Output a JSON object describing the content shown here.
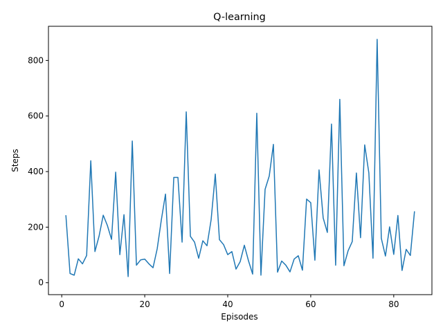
{
  "chart_data": {
    "type": "line",
    "title": "Q-learning",
    "xlabel": "Episodes",
    "ylabel": "Steps",
    "xlim": [
      -3.2,
      89.2
    ],
    "ylim": [
      -43,
      923
    ],
    "x_ticks": [
      0,
      20,
      40,
      60,
      80
    ],
    "y_ticks": [
      0,
      200,
      400,
      600,
      800
    ],
    "grid": false,
    "legend": "none",
    "colors": {
      "line": "#1f77b4",
      "axes": "#000000",
      "background": "#ffffff"
    },
    "series": [
      {
        "x": [
          1,
          2,
          3,
          4,
          5,
          6,
          7,
          8,
          9,
          10,
          11,
          12,
          13,
          14,
          15,
          16,
          17,
          18,
          19,
          20,
          21,
          22,
          23,
          24,
          25,
          26,
          27,
          28,
          29,
          30,
          31,
          32,
          33,
          34,
          35,
          36,
          37,
          38,
          39,
          40,
          41,
          42,
          43,
          44,
          45,
          46,
          47,
          48,
          49,
          50,
          51,
          52,
          53,
          54,
          55,
          56,
          57,
          58,
          59,
          60,
          61,
          62,
          63,
          64,
          65,
          66,
          67,
          68,
          69,
          70,
          71,
          72,
          73,
          74,
          75,
          76,
          77,
          78,
          79,
          80,
          81,
          82,
          83,
          84,
          85
        ],
        "values": [
          243,
          33,
          27,
          86,
          68,
          98,
          439,
          112,
          168,
          243,
          206,
          156,
          398,
          101,
          245,
          22,
          510,
          63,
          82,
          85,
          68,
          54,
          122,
          226,
          319,
          33,
          379,
          379,
          146,
          615,
          167,
          146,
          88,
          151,
          133,
          227,
          391,
          155,
          137,
          101,
          112,
          49,
          76,
          135,
          79,
          31,
          610,
          27,
          336,
          384,
          498,
          38,
          78,
          63,
          39,
          85,
          97,
          45,
          301,
          288,
          81,
          406,
          233,
          181,
          571,
          63,
          660,
          61,
          115,
          148,
          395,
          162,
          496,
          395,
          88,
          876,
          160,
          96,
          201,
          102,
          242,
          44,
          120,
          98,
          257
        ]
      }
    ]
  }
}
